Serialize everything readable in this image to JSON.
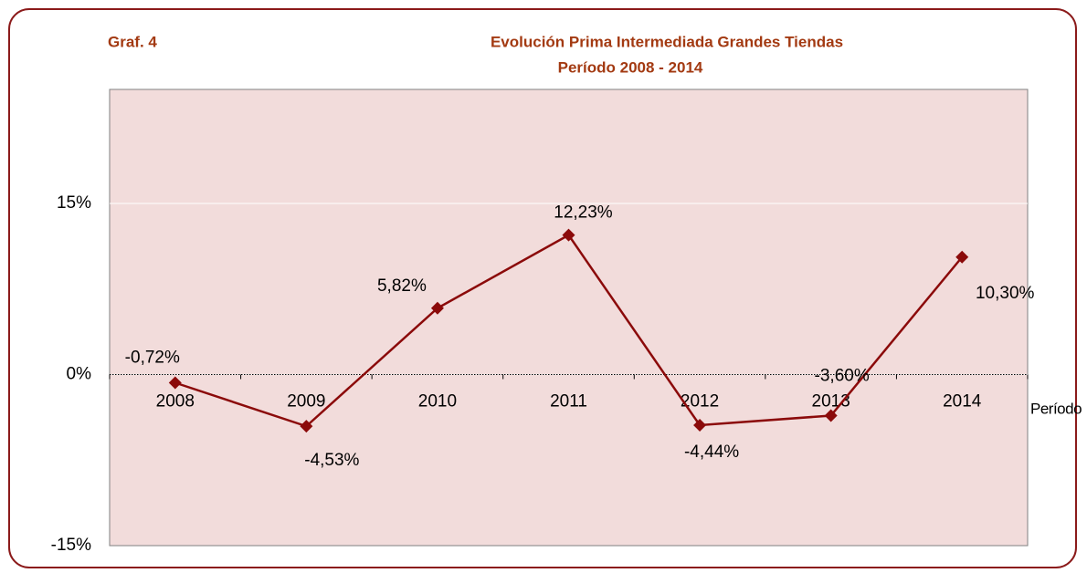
{
  "chart_data": {
    "type": "line",
    "label": "Graf. 4",
    "title": "Evolución Prima Intermediada Grandes Tiendas",
    "subtitle": "Período 2008 - 2014",
    "x_label": "Período",
    "categories": [
      "2008",
      "2009",
      "2010",
      "2011",
      "2012",
      "2013",
      "2014"
    ],
    "series": [
      {
        "name": "Prima Intermediada",
        "color": "#8b0a0a",
        "values": [
          -0.72,
          -4.53,
          5.82,
          12.23,
          -4.44,
          -3.6,
          10.3
        ],
        "value_labels": [
          "-0,72%",
          "-4,53%",
          "5,82%",
          "12,23%",
          "-4,44%",
          "-3,60%",
          "10,30%"
        ]
      }
    ],
    "ylim": [
      -15,
      25
    ],
    "yticks": [
      {
        "value": -15,
        "label": "-15%"
      },
      {
        "value": 0,
        "label": "0%"
      },
      {
        "value": 15,
        "label": "15%"
      }
    ],
    "grid": true
  }
}
